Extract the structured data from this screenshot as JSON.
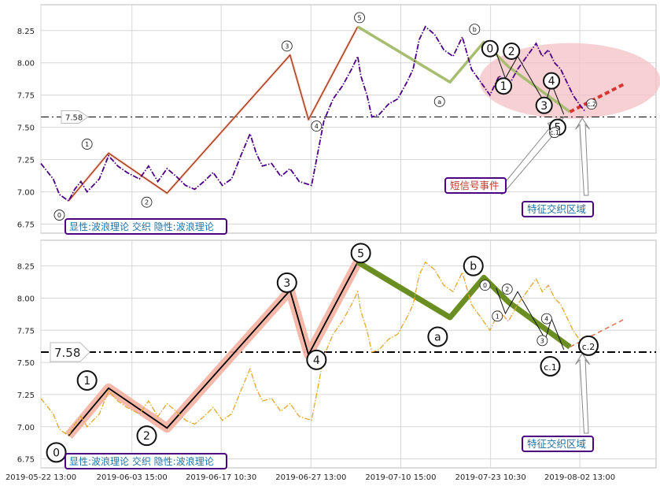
{
  "chart_data": [
    {
      "type": "line",
      "panel": "top",
      "ylim": [
        6.68,
        8.45
      ],
      "yticks": [
        "6.75",
        "7.00",
        "7.25",
        "7.50",
        "7.75",
        "8.00",
        "8.25"
      ],
      "reference_line": {
        "value": 7.58,
        "label": "7.58"
      },
      "series": [
        {
          "color": "#4b0082",
          "style": "dash-dot",
          "points": [
            [
              0.0,
              7.22
            ],
            [
              2.0,
              7.1
            ],
            [
              3.0,
              6.98
            ],
            [
              4.5,
              6.93
            ],
            [
              5.5,
              7.02
            ],
            [
              6.5,
              7.08
            ],
            [
              7.5,
              7.0
            ],
            [
              8.5,
              7.05
            ],
            [
              9.5,
              7.1
            ],
            [
              11.0,
              7.28
            ],
            [
              12.5,
              7.2
            ],
            [
              14.0,
              7.15
            ],
            [
              16.0,
              7.1
            ],
            [
              17.5,
              7.2
            ],
            [
              19.0,
              7.08
            ],
            [
              20.5,
              7.18
            ],
            [
              22.0,
              7.12
            ],
            [
              23.5,
              7.05
            ],
            [
              25.0,
              7.02
            ],
            [
              26.5,
              7.08
            ],
            [
              28.0,
              7.15
            ],
            [
              29.5,
              7.05
            ],
            [
              31.0,
              7.1
            ],
            [
              32.5,
              7.28
            ],
            [
              34.0,
              7.45
            ],
            [
              35.0,
              7.3
            ],
            [
              36.0,
              7.2
            ],
            [
              37.5,
              7.22
            ],
            [
              39.0,
              7.12
            ],
            [
              40.5,
              7.18
            ],
            [
              42.0,
              7.08
            ],
            [
              44.0,
              7.05
            ],
            [
              45.0,
              7.3
            ],
            [
              46.0,
              7.55
            ],
            [
              47.5,
              7.72
            ],
            [
              49.0,
              7.82
            ],
            [
              50.5,
              7.95
            ],
            [
              51.5,
              8.05
            ],
            [
              52.0,
              7.9
            ],
            [
              53.0,
              7.75
            ],
            [
              53.8,
              7.58
            ],
            [
              55.0,
              7.6
            ],
            [
              56.5,
              7.68
            ],
            [
              58.0,
              7.72
            ],
            [
              59.5,
              7.85
            ],
            [
              60.5,
              7.95
            ],
            [
              61.5,
              8.18
            ],
            [
              62.5,
              8.28
            ],
            [
              64.0,
              8.22
            ],
            [
              65.5,
              8.1
            ],
            [
              67.0,
              8.05
            ],
            [
              68.5,
              8.2
            ],
            [
              70.0,
              7.95
            ],
            [
              71.5,
              7.85
            ],
            [
              73.0,
              7.75
            ],
            [
              74.5,
              7.9
            ],
            [
              76.0,
              7.82
            ],
            [
              77.5,
              7.95
            ],
            [
              79.0,
              8.05
            ],
            [
              80.5,
              8.15
            ],
            [
              81.5,
              8.05
            ],
            [
              82.5,
              8.1
            ],
            [
              83.5,
              8.0
            ],
            [
              84.5,
              7.95
            ],
            [
              85.5,
              7.85
            ],
            [
              86.5,
              7.75
            ],
            [
              87.5,
              7.68
            ],
            [
              88.5,
              7.62
            ]
          ]
        }
      ],
      "wave_labels": [
        {
          "text": "0",
          "x": 3.0,
          "y": 6.82
        },
        {
          "text": "1",
          "x": 7.5,
          "y": 7.37
        },
        {
          "text": "2",
          "x": 17.2,
          "y": 6.92
        },
        {
          "text": "3",
          "x": 40.0,
          "y": 8.13
        },
        {
          "text": "4",
          "x": 44.8,
          "y": 7.51
        },
        {
          "text": "5",
          "x": 51.8,
          "y": 8.35
        },
        {
          "text": "a",
          "x": 64.8,
          "y": 7.7
        },
        {
          "text": "b",
          "x": 70.5,
          "y": 8.26
        },
        {
          "text": "0",
          "x": 73.0,
          "y": 8.11
        },
        {
          "text": "2",
          "x": 76.5,
          "y": 8.09
        },
        {
          "text": "1",
          "x": 75.2,
          "y": 7.82
        },
        {
          "text": "3",
          "x": 81.8,
          "y": 7.67
        },
        {
          "text": "4",
          "x": 83.0,
          "y": 7.86
        },
        {
          "text": "5",
          "x": 84.0,
          "y": 7.5
        },
        {
          "text": "c.1",
          "x": 83.5,
          "y": 7.46
        },
        {
          "text": "c.2",
          "x": 89.5,
          "y": 7.68
        }
      ],
      "annotations": [
        {
          "text": "短信号事件",
          "color": "#c0392b"
        },
        {
          "text": "特征交织区域",
          "color": "#2471a3"
        }
      ],
      "legend_box": "显性:波浪理论 交织 隐性:波浪理论"
    },
    {
      "type": "line",
      "panel": "bottom",
      "ylim": [
        6.68,
        8.45
      ],
      "yticks": [
        "6.75",
        "7.00",
        "7.25",
        "7.50",
        "7.75",
        "8.00",
        "8.25"
      ],
      "reference_line": {
        "value": 7.58,
        "label": "7.58"
      },
      "xticks": [
        "2019-05-22 13:00",
        "2019-06-03 15:00",
        "2019-06-17 10:30",
        "2019-06-27 13:00",
        "2019-07-10 15:00",
        "2019-07-23 10:30",
        "2019-08-02 13:00"
      ],
      "series": [
        {
          "color": "#e0a82e",
          "style": "dash-dot",
          "points": [
            [
              0.0,
              7.22
            ],
            [
              2.0,
              7.1
            ],
            [
              3.0,
              6.98
            ],
            [
              4.5,
              6.93
            ],
            [
              5.5,
              7.02
            ],
            [
              6.5,
              7.08
            ],
            [
              7.5,
              7.0
            ],
            [
              8.5,
              7.05
            ],
            [
              9.5,
              7.1
            ],
            [
              11.0,
              7.28
            ],
            [
              12.5,
              7.2
            ],
            [
              14.0,
              7.15
            ],
            [
              16.0,
              7.1
            ],
            [
              17.5,
              7.2
            ],
            [
              19.0,
              7.08
            ],
            [
              20.5,
              7.18
            ],
            [
              22.0,
              7.12
            ],
            [
              23.5,
              7.05
            ],
            [
              25.0,
              7.02
            ],
            [
              26.5,
              7.08
            ],
            [
              28.0,
              7.15
            ],
            [
              29.5,
              7.05
            ],
            [
              31.0,
              7.1
            ],
            [
              32.5,
              7.28
            ],
            [
              34.0,
              7.45
            ],
            [
              35.0,
              7.3
            ],
            [
              36.0,
              7.2
            ],
            [
              37.5,
              7.22
            ],
            [
              39.0,
              7.12
            ],
            [
              40.5,
              7.18
            ],
            [
              42.0,
              7.08
            ],
            [
              44.0,
              7.05
            ],
            [
              45.0,
              7.3
            ],
            [
              46.0,
              7.55
            ],
            [
              47.5,
              7.72
            ],
            [
              49.0,
              7.82
            ],
            [
              50.5,
              7.95
            ],
            [
              51.5,
              8.05
            ],
            [
              52.0,
              7.9
            ],
            [
              53.0,
              7.75
            ],
            [
              53.8,
              7.58
            ],
            [
              55.0,
              7.6
            ],
            [
              56.5,
              7.68
            ],
            [
              58.0,
              7.72
            ],
            [
              59.5,
              7.85
            ],
            [
              60.5,
              7.95
            ],
            [
              61.5,
              8.18
            ],
            [
              62.5,
              8.28
            ],
            [
              64.0,
              8.22
            ],
            [
              65.5,
              8.1
            ],
            [
              67.0,
              8.05
            ],
            [
              68.5,
              8.2
            ],
            [
              70.0,
              7.95
            ],
            [
              71.5,
              7.85
            ],
            [
              73.0,
              7.75
            ],
            [
              74.5,
              7.9
            ],
            [
              76.0,
              7.82
            ],
            [
              77.5,
              7.95
            ],
            [
              79.0,
              8.05
            ],
            [
              80.5,
              8.15
            ],
            [
              81.5,
              8.05
            ],
            [
              82.5,
              8.1
            ],
            [
              83.5,
              8.0
            ],
            [
              84.5,
              7.95
            ],
            [
              85.5,
              7.85
            ],
            [
              86.5,
              7.75
            ],
            [
              87.5,
              7.68
            ],
            [
              88.5,
              7.62
            ]
          ]
        }
      ],
      "wave_labels": [
        {
          "text": "0",
          "x": 2.5,
          "y": 6.8
        },
        {
          "text": "1",
          "x": 7.5,
          "y": 7.36
        },
        {
          "text": "2",
          "x": 17.2,
          "y": 6.93
        },
        {
          "text": "3",
          "x": 40.0,
          "y": 8.12
        },
        {
          "text": "4",
          "x": 44.8,
          "y": 7.52
        },
        {
          "text": "5",
          "x": 52.0,
          "y": 8.35
        },
        {
          "text": "a",
          "x": 64.5,
          "y": 7.7
        },
        {
          "text": "b",
          "x": 70.3,
          "y": 8.25
        },
        {
          "text": "0",
          "x": 72.2,
          "y": 8.1
        },
        {
          "text": "2",
          "x": 75.8,
          "y": 8.07
        },
        {
          "text": "1",
          "x": 74.2,
          "y": 7.86
        },
        {
          "text": "3",
          "x": 81.5,
          "y": 7.67
        },
        {
          "text": "4",
          "x": 82.2,
          "y": 7.84
        },
        {
          "text": "c.1",
          "x": 82.8,
          "y": 7.47
        },
        {
          "text": "c.2",
          "x": 89.0,
          "y": 7.63
        }
      ],
      "annotations": [
        {
          "text": "特征交织区域",
          "color": "#2471a3"
        }
      ],
      "legend_box": "显性:波浪理论 交织 隐性:波浪理论"
    }
  ],
  "colors": {
    "impulse_fill": "#f4b0a0",
    "corrective_fill": "#6b8e23",
    "corrective_light": "#a8bd6f",
    "highlight_ellipse": "#f3c0c4",
    "label_box_border": "#4b0082",
    "label_box_text": "#2471a3"
  }
}
